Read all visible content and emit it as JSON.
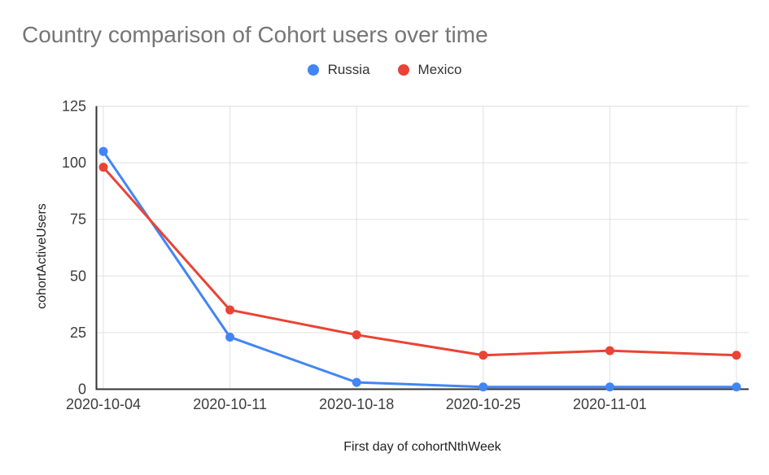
{
  "title": "Country comparison of Cohort users over time",
  "chart_data": {
    "type": "line",
    "title": "Country comparison of Cohort users over time",
    "xlabel": "First day of cohortNthWeek",
    "ylabel": "cohortActiveUsers",
    "categories": [
      "2020-10-04",
      "2020-10-11",
      "2020-10-18",
      "2020-10-25",
      "2020-11-01",
      ""
    ],
    "series": [
      {
        "name": "Russia",
        "color": "#4285f4",
        "values": [
          105,
          23,
          3,
          1,
          1,
          1
        ]
      },
      {
        "name": "Mexico",
        "color": "#ea4335",
        "values": [
          98,
          35,
          24,
          15,
          17,
          15
        ]
      }
    ],
    "ylim": [
      0,
      125
    ],
    "yticks": [
      0,
      25,
      50,
      75,
      100,
      125
    ],
    "grid": true,
    "legend_position": "top",
    "colors": {
      "title": "#757575",
      "gridline": "#e0e0e0",
      "axis_line": "#333333",
      "tick_label": "#3c3c3c",
      "point_fill_russia": "#4285f4",
      "point_fill_mexico": "#ea4335"
    }
  }
}
